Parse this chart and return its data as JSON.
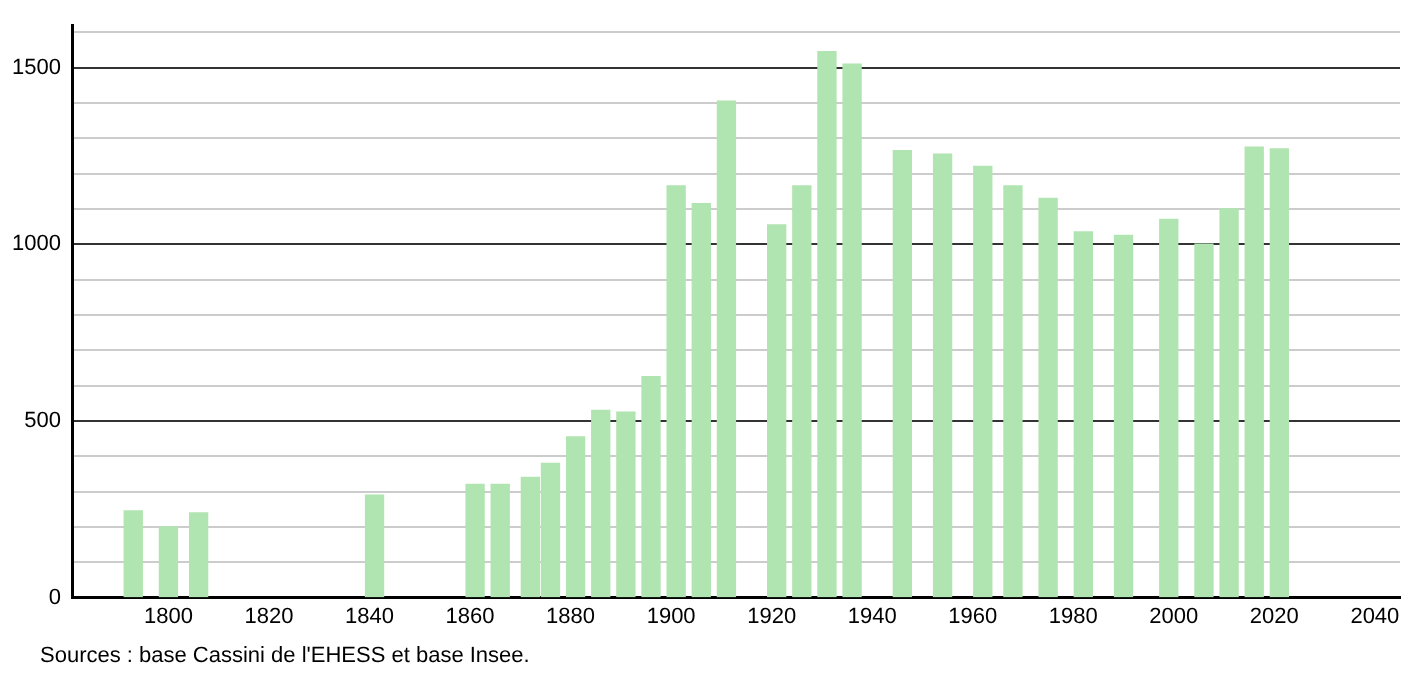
{
  "chart_data": {
    "type": "bar",
    "x": [
      1793,
      1800,
      1806,
      1841,
      1861,
      1866,
      1872,
      1876,
      1881,
      1886,
      1891,
      1896,
      1901,
      1906,
      1911,
      1921,
      1926,
      1931,
      1936,
      1946,
      1954,
      1962,
      1968,
      1975,
      1982,
      1990,
      1999,
      2006,
      2011,
      2016,
      2021
    ],
    "values": [
      245,
      200,
      240,
      290,
      320,
      320,
      340,
      380,
      455,
      530,
      525,
      625,
      1165,
      1115,
      1405,
      1055,
      1165,
      1545,
      1510,
      1265,
      1255,
      1220,
      1165,
      1130,
      1035,
      1025,
      1070,
      1000,
      1100,
      1275,
      1270
    ],
    "color": "#b0e4b0",
    "xlim": [
      1781,
      2045
    ],
    "xticks": [
      1800,
      1820,
      1840,
      1860,
      1880,
      1900,
      1920,
      1940,
      1960,
      1980,
      2000,
      2020,
      2040
    ],
    "ylim": [
      0,
      1620
    ],
    "yticks": [
      0,
      {
        "value": 100,
        "label": null
      },
      {
        "value": 200,
        "label": null
      },
      {
        "value": 300,
        "label": null
      },
      {
        "value": 400,
        "label": null
      },
      500,
      {
        "value": 600,
        "label": null
      },
      {
        "value": 700,
        "label": null
      },
      {
        "value": 800,
        "label": null
      },
      {
        "value": 900,
        "label": null
      },
      1000,
      {
        "value": 1100,
        "label": null
      },
      {
        "value": 1200,
        "label": null
      },
      {
        "value": 1300,
        "label": null
      },
      {
        "value": 1400,
        "label": null
      },
      1500,
      {
        "value": 1600,
        "label": null
      }
    ],
    "grid": "y",
    "legend": false,
    "annotations": [
      "Sources : base Cassini de l'EHESS et base Insee."
    ]
  }
}
